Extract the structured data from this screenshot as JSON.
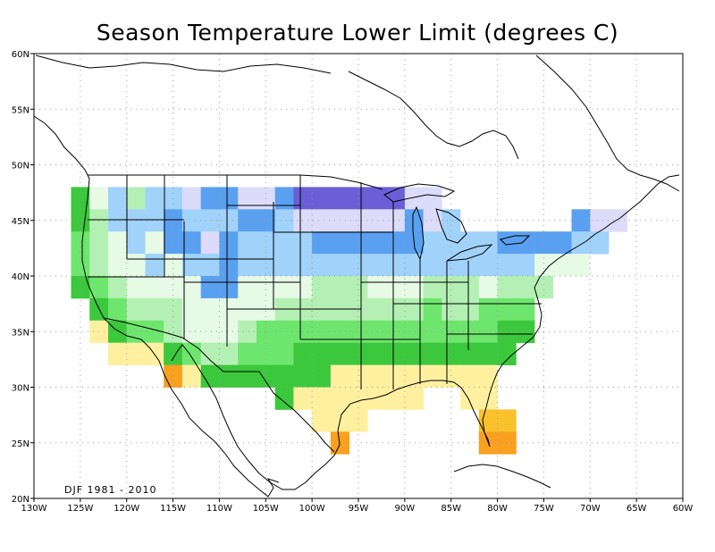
{
  "title": "Season Temperature Lower Limit (degrees C)",
  "period_label": "DJF 1981 - 2010",
  "x_ticks": [
    "130W",
    "125W",
    "120W",
    "115W",
    "110W",
    "105W",
    "100W",
    "95W",
    "90W",
    "85W",
    "80W",
    "75W",
    "70W",
    "65W",
    "60W"
  ],
  "y_ticks": [
    "60N",
    "55N",
    "50N",
    "45N",
    "40N",
    "35N",
    "30N",
    "25N",
    "20N"
  ],
  "map_data": {
    "type": "heatmap",
    "projection": "lon-lat",
    "xlim": [
      -130,
      -60
    ],
    "ylim": [
      20,
      60
    ],
    "grid": true,
    "cell_size_deg": 2,
    "palette": {
      "1": "#6a5fd6",
      "2": "#dcdcfa",
      "3": "#5aa0f0",
      "4": "#a0d2fa",
      "5": "#e6fae6",
      "6": "#b4f0b4",
      "7": "#6ee66e",
      "8": "#3cc83c",
      "9": "#fff0a0",
      "10": "#f9c22d",
      "11": "#f9a01e"
    },
    "cells": [
      {
        "lon": -125,
        "lat": 47,
        "bin": 8
      },
      {
        "lon": -123,
        "lat": 47,
        "bin": 5
      },
      {
        "lon": -121,
        "lat": 47,
        "bin": 4
      },
      {
        "lon": -119,
        "lat": 47,
        "bin": 6
      },
      {
        "lon": -117,
        "lat": 47,
        "bin": 4
      },
      {
        "lon": -115,
        "lat": 47,
        "bin": 4
      },
      {
        "lon": -113,
        "lat": 47,
        "bin": 2
      },
      {
        "lon": -111,
        "lat": 47,
        "bin": 3
      },
      {
        "lon": -109,
        "lat": 47,
        "bin": 3
      },
      {
        "lon": -107,
        "lat": 47,
        "bin": 2
      },
      {
        "lon": -105,
        "lat": 47,
        "bin": 2
      },
      {
        "lon": -103,
        "lat": 47,
        "bin": 3
      },
      {
        "lon": -101,
        "lat": 47,
        "bin": 1
      },
      {
        "lon": -99,
        "lat": 47,
        "bin": 1
      },
      {
        "lon": -97,
        "lat": 47,
        "bin": 1
      },
      {
        "lon": -95,
        "lat": 47,
        "bin": 1
      },
      {
        "lon": -93,
        "lat": 47,
        "bin": 1
      },
      {
        "lon": -91,
        "lat": 47,
        "bin": 1
      },
      {
        "lon": -89,
        "lat": 47,
        "bin": 2
      },
      {
        "lon": -87,
        "lat": 47,
        "bin": 2
      },
      {
        "lon": -125,
        "lat": 45,
        "bin": 8
      },
      {
        "lon": -123,
        "lat": 45,
        "bin": 6
      },
      {
        "lon": -121,
        "lat": 45,
        "bin": 4
      },
      {
        "lon": -119,
        "lat": 45,
        "bin": 4
      },
      {
        "lon": -117,
        "lat": 45,
        "bin": 4
      },
      {
        "lon": -115,
        "lat": 45,
        "bin": 3
      },
      {
        "lon": -113,
        "lat": 45,
        "bin": 4
      },
      {
        "lon": -111,
        "lat": 45,
        "bin": 4
      },
      {
        "lon": -109,
        "lat": 45,
        "bin": 4
      },
      {
        "lon": -107,
        "lat": 45,
        "bin": 3
      },
      {
        "lon": -105,
        "lat": 45,
        "bin": 3
      },
      {
        "lon": -103,
        "lat": 45,
        "bin": 4
      },
      {
        "lon": -101,
        "lat": 45,
        "bin": 2
      },
      {
        "lon": -99,
        "lat": 45,
        "bin": 2
      },
      {
        "lon": -97,
        "lat": 45,
        "bin": 2
      },
      {
        "lon": -95,
        "lat": 45,
        "bin": 2
      },
      {
        "lon": -93,
        "lat": 45,
        "bin": 2
      },
      {
        "lon": -91,
        "lat": 45,
        "bin": 2
      },
      {
        "lon": -89,
        "lat": 45,
        "bin": 3
      },
      {
        "lon": -87,
        "lat": 45,
        "bin": 2
      },
      {
        "lon": -85,
        "lat": 45,
        "bin": 4
      },
      {
        "lon": -71,
        "lat": 45,
        "bin": 3
      },
      {
        "lon": -69,
        "lat": 45,
        "bin": 2
      },
      {
        "lon": -67,
        "lat": 45,
        "bin": 2
      },
      {
        "lon": -125,
        "lat": 43,
        "bin": 7
      },
      {
        "lon": -123,
        "lat": 43,
        "bin": 6
      },
      {
        "lon": -121,
        "lat": 43,
        "bin": 5
      },
      {
        "lon": -119,
        "lat": 43,
        "bin": 4
      },
      {
        "lon": -117,
        "lat": 43,
        "bin": 5
      },
      {
        "lon": -115,
        "lat": 43,
        "bin": 3
      },
      {
        "lon": -113,
        "lat": 43,
        "bin": 3
      },
      {
        "lon": -111,
        "lat": 43,
        "bin": 2
      },
      {
        "lon": -109,
        "lat": 43,
        "bin": 3
      },
      {
        "lon": -107,
        "lat": 43,
        "bin": 4
      },
      {
        "lon": -105,
        "lat": 43,
        "bin": 4
      },
      {
        "lon": -103,
        "lat": 43,
        "bin": 4
      },
      {
        "lon": -101,
        "lat": 43,
        "bin": 4
      },
      {
        "lon": -99,
        "lat": 43,
        "bin": 3
      },
      {
        "lon": -97,
        "lat": 43,
        "bin": 3
      },
      {
        "lon": -95,
        "lat": 43,
        "bin": 3
      },
      {
        "lon": -93,
        "lat": 43,
        "bin": 3
      },
      {
        "lon": -91,
        "lat": 43,
        "bin": 3
      },
      {
        "lon": -89,
        "lat": 43,
        "bin": 3
      },
      {
        "lon": -87,
        "lat": 43,
        "bin": 4
      },
      {
        "lon": -85,
        "lat": 43,
        "bin": 4
      },
      {
        "lon": -83,
        "lat": 43,
        "bin": 4
      },
      {
        "lon": -81,
        "lat": 43,
        "bin": 4
      },
      {
        "lon": -79,
        "lat": 43,
        "bin": 3
      },
      {
        "lon": -77,
        "lat": 43,
        "bin": 3
      },
      {
        "lon": -75,
        "lat": 43,
        "bin": 3
      },
      {
        "lon": -73,
        "lat": 43,
        "bin": 3
      },
      {
        "lon": -71,
        "lat": 43,
        "bin": 4
      },
      {
        "lon": -69,
        "lat": 43,
        "bin": 4
      },
      {
        "lon": -125,
        "lat": 41,
        "bin": 7
      },
      {
        "lon": -123,
        "lat": 41,
        "bin": 6
      },
      {
        "lon": -121,
        "lat": 41,
        "bin": 5
      },
      {
        "lon": -119,
        "lat": 41,
        "bin": 5
      },
      {
        "lon": -117,
        "lat": 41,
        "bin": 4
      },
      {
        "lon": -115,
        "lat": 41,
        "bin": 5
      },
      {
        "lon": -113,
        "lat": 41,
        "bin": 4
      },
      {
        "lon": -111,
        "lat": 41,
        "bin": 4
      },
      {
        "lon": -109,
        "lat": 41,
        "bin": 3
      },
      {
        "lon": -107,
        "lat": 41,
        "bin": 4
      },
      {
        "lon": -105,
        "lat": 41,
        "bin": 4
      },
      {
        "lon": -103,
        "lat": 41,
        "bin": 4
      },
      {
        "lon": -101,
        "lat": 41,
        "bin": 4
      },
      {
        "lon": -99,
        "lat": 41,
        "bin": 4
      },
      {
        "lon": -97,
        "lat": 41,
        "bin": 4
      },
      {
        "lon": -95,
        "lat": 41,
        "bin": 4
      },
      {
        "lon": -93,
        "lat": 41,
        "bin": 4
      },
      {
        "lon": -91,
        "lat": 41,
        "bin": 4
      },
      {
        "lon": -89,
        "lat": 41,
        "bin": 4
      },
      {
        "lon": -87,
        "lat": 41,
        "bin": 4
      },
      {
        "lon": -85,
        "lat": 41,
        "bin": 4
      },
      {
        "lon": -83,
        "lat": 41,
        "bin": 4
      },
      {
        "lon": -81,
        "lat": 41,
        "bin": 4
      },
      {
        "lon": -79,
        "lat": 41,
        "bin": 4
      },
      {
        "lon": -77,
        "lat": 41,
        "bin": 4
      },
      {
        "lon": -75,
        "lat": 41,
        "bin": 5
      },
      {
        "lon": -73,
        "lat": 41,
        "bin": 5
      },
      {
        "lon": -71,
        "lat": 41,
        "bin": 5
      },
      {
        "lon": -125,
        "lat": 39,
        "bin": 8
      },
      {
        "lon": -123,
        "lat": 39,
        "bin": 7
      },
      {
        "lon": -121,
        "lat": 39,
        "bin": 6
      },
      {
        "lon": -119,
        "lat": 39,
        "bin": 5
      },
      {
        "lon": -117,
        "lat": 39,
        "bin": 5
      },
      {
        "lon": -115,
        "lat": 39,
        "bin": 5
      },
      {
        "lon": -113,
        "lat": 39,
        "bin": 5
      },
      {
        "lon": -111,
        "lat": 39,
        "bin": 3
      },
      {
        "lon": -109,
        "lat": 39,
        "bin": 3
      },
      {
        "lon": -107,
        "lat": 39,
        "bin": 5
      },
      {
        "lon": -105,
        "lat": 39,
        "bin": 5
      },
      {
        "lon": -103,
        "lat": 39,
        "bin": 5
      },
      {
        "lon": -101,
        "lat": 39,
        "bin": 5
      },
      {
        "lon": -99,
        "lat": 39,
        "bin": 6
      },
      {
        "lon": -97,
        "lat": 39,
        "bin": 6
      },
      {
        "lon": -95,
        "lat": 39,
        "bin": 6
      },
      {
        "lon": -93,
        "lat": 39,
        "bin": 5
      },
      {
        "lon": -91,
        "lat": 39,
        "bin": 5
      },
      {
        "lon": -89,
        "lat": 39,
        "bin": 5
      },
      {
        "lon": -87,
        "lat": 39,
        "bin": 6
      },
      {
        "lon": -85,
        "lat": 39,
        "bin": 6
      },
      {
        "lon": -83,
        "lat": 39,
        "bin": 6
      },
      {
        "lon": -81,
        "lat": 39,
        "bin": 5
      },
      {
        "lon": -79,
        "lat": 39,
        "bin": 6
      },
      {
        "lon": -77,
        "lat": 39,
        "bin": 6
      },
      {
        "lon": -75,
        "lat": 39,
        "bin": 6
      },
      {
        "lon": -123,
        "lat": 37,
        "bin": 8
      },
      {
        "lon": -121,
        "lat": 37,
        "bin": 7
      },
      {
        "lon": -119,
        "lat": 37,
        "bin": 6
      },
      {
        "lon": -117,
        "lat": 37,
        "bin": 6
      },
      {
        "lon": -115,
        "lat": 37,
        "bin": 6
      },
      {
        "lon": -113,
        "lat": 37,
        "bin": 5
      },
      {
        "lon": -111,
        "lat": 37,
        "bin": 5
      },
      {
        "lon": -109,
        "lat": 37,
        "bin": 5
      },
      {
        "lon": -107,
        "lat": 37,
        "bin": 5
      },
      {
        "lon": -105,
        "lat": 37,
        "bin": 5
      },
      {
        "lon": -103,
        "lat": 37,
        "bin": 6
      },
      {
        "lon": -101,
        "lat": 37,
        "bin": 6
      },
      {
        "lon": -99,
        "lat": 37,
        "bin": 6
      },
      {
        "lon": -97,
        "lat": 37,
        "bin": 6
      },
      {
        "lon": -95,
        "lat": 37,
        "bin": 6
      },
      {
        "lon": -93,
        "lat": 37,
        "bin": 6
      },
      {
        "lon": -91,
        "lat": 37,
        "bin": 6
      },
      {
        "lon": -89,
        "lat": 37,
        "bin": 6
      },
      {
        "lon": -87,
        "lat": 37,
        "bin": 7
      },
      {
        "lon": -85,
        "lat": 37,
        "bin": 6
      },
      {
        "lon": -83,
        "lat": 37,
        "bin": 6
      },
      {
        "lon": -81,
        "lat": 37,
        "bin": 7
      },
      {
        "lon": -79,
        "lat": 37,
        "bin": 7
      },
      {
        "lon": -77,
        "lat": 37,
        "bin": 7
      },
      {
        "lon": -123,
        "lat": 35,
        "bin": 9
      },
      {
        "lon": -121,
        "lat": 35,
        "bin": 8
      },
      {
        "lon": -119,
        "lat": 35,
        "bin": 7
      },
      {
        "lon": -117,
        "lat": 35,
        "bin": 7
      },
      {
        "lon": -115,
        "lat": 35,
        "bin": 6
      },
      {
        "lon": -113,
        "lat": 35,
        "bin": 5
      },
      {
        "lon": -111,
        "lat": 35,
        "bin": 5
      },
      {
        "lon": -109,
        "lat": 35,
        "bin": 5
      },
      {
        "lon": -107,
        "lat": 35,
        "bin": 6
      },
      {
        "lon": -105,
        "lat": 35,
        "bin": 7
      },
      {
        "lon": -103,
        "lat": 35,
        "bin": 7
      },
      {
        "lon": -101,
        "lat": 35,
        "bin": 7
      },
      {
        "lon": -99,
        "lat": 35,
        "bin": 7
      },
      {
        "lon": -97,
        "lat": 35,
        "bin": 7
      },
      {
        "lon": -95,
        "lat": 35,
        "bin": 7
      },
      {
        "lon": -93,
        "lat": 35,
        "bin": 7
      },
      {
        "lon": -91,
        "lat": 35,
        "bin": 7
      },
      {
        "lon": -89,
        "lat": 35,
        "bin": 7
      },
      {
        "lon": -87,
        "lat": 35,
        "bin": 7
      },
      {
        "lon": -85,
        "lat": 35,
        "bin": 7
      },
      {
        "lon": -83,
        "lat": 35,
        "bin": 7
      },
      {
        "lon": -81,
        "lat": 35,
        "bin": 7
      },
      {
        "lon": -79,
        "lat": 35,
        "bin": 8
      },
      {
        "lon": -77,
        "lat": 35,
        "bin": 8
      },
      {
        "lon": -121,
        "lat": 33,
        "bin": 9
      },
      {
        "lon": -119,
        "lat": 33,
        "bin": 9
      },
      {
        "lon": -117,
        "lat": 33,
        "bin": 9
      },
      {
        "lon": -115,
        "lat": 33,
        "bin": 8
      },
      {
        "lon": -113,
        "lat": 33,
        "bin": 7
      },
      {
        "lon": -111,
        "lat": 33,
        "bin": 6
      },
      {
        "lon": -109,
        "lat": 33,
        "bin": 6
      },
      {
        "lon": -107,
        "lat": 33,
        "bin": 7
      },
      {
        "lon": -105,
        "lat": 33,
        "bin": 7
      },
      {
        "lon": -103,
        "lat": 33,
        "bin": 7
      },
      {
        "lon": -101,
        "lat": 33,
        "bin": 8
      },
      {
        "lon": -99,
        "lat": 33,
        "bin": 8
      },
      {
        "lon": -97,
        "lat": 33,
        "bin": 8
      },
      {
        "lon": -95,
        "lat": 33,
        "bin": 8
      },
      {
        "lon": -93,
        "lat": 33,
        "bin": 8
      },
      {
        "lon": -91,
        "lat": 33,
        "bin": 8
      },
      {
        "lon": -89,
        "lat": 33,
        "bin": 8
      },
      {
        "lon": -87,
        "lat": 33,
        "bin": 8
      },
      {
        "lon": -85,
        "lat": 33,
        "bin": 8
      },
      {
        "lon": -83,
        "lat": 33,
        "bin": 8
      },
      {
        "lon": -81,
        "lat": 33,
        "bin": 8
      },
      {
        "lon": -79,
        "lat": 33,
        "bin": 8
      },
      {
        "lon": -115,
        "lat": 31,
        "bin": 11
      },
      {
        "lon": -113,
        "lat": 31,
        "bin": 9
      },
      {
        "lon": -111,
        "lat": 31,
        "bin": 8
      },
      {
        "lon": -109,
        "lat": 31,
        "bin": 8
      },
      {
        "lon": -107,
        "lat": 31,
        "bin": 8
      },
      {
        "lon": -105,
        "lat": 31,
        "bin": 8
      },
      {
        "lon": -103,
        "lat": 31,
        "bin": 8
      },
      {
        "lon": -101,
        "lat": 31,
        "bin": 8
      },
      {
        "lon": -99,
        "lat": 31,
        "bin": 8
      },
      {
        "lon": -97,
        "lat": 31,
        "bin": 9
      },
      {
        "lon": -95,
        "lat": 31,
        "bin": 9
      },
      {
        "lon": -93,
        "lat": 31,
        "bin": 9
      },
      {
        "lon": -91,
        "lat": 31,
        "bin": 9
      },
      {
        "lon": -89,
        "lat": 31,
        "bin": 9
      },
      {
        "lon": -87,
        "lat": 31,
        "bin": 9
      },
      {
        "lon": -85,
        "lat": 31,
        "bin": 9
      },
      {
        "lon": -83,
        "lat": 31,
        "bin": 9
      },
      {
        "lon": -81,
        "lat": 31,
        "bin": 9
      },
      {
        "lon": -103,
        "lat": 29,
        "bin": 8
      },
      {
        "lon": -101,
        "lat": 29,
        "bin": 9
      },
      {
        "lon": -99,
        "lat": 29,
        "bin": 9
      },
      {
        "lon": -97,
        "lat": 29,
        "bin": 9
      },
      {
        "lon": -95,
        "lat": 29,
        "bin": 9
      },
      {
        "lon": -93,
        "lat": 29,
        "bin": 9
      },
      {
        "lon": -91,
        "lat": 29,
        "bin": 9
      },
      {
        "lon": -89,
        "lat": 29,
        "bin": 9
      },
      {
        "lon": -83,
        "lat": 29,
        "bin": 9
      },
      {
        "lon": -81,
        "lat": 29,
        "bin": 9
      },
      {
        "lon": -99,
        "lat": 27,
        "bin": 9
      },
      {
        "lon": -97,
        "lat": 27,
        "bin": 9
      },
      {
        "lon": -95,
        "lat": 27,
        "bin": 9
      },
      {
        "lon": -81,
        "lat": 27,
        "bin": 10
      },
      {
        "lon": -79,
        "lat": 27,
        "bin": 10
      },
      {
        "lon": -97,
        "lat": 25,
        "bin": 11
      },
      {
        "lon": -81,
        "lat": 25,
        "bin": 11
      },
      {
        "lon": -79,
        "lat": 25,
        "bin": 11
      }
    ]
  }
}
